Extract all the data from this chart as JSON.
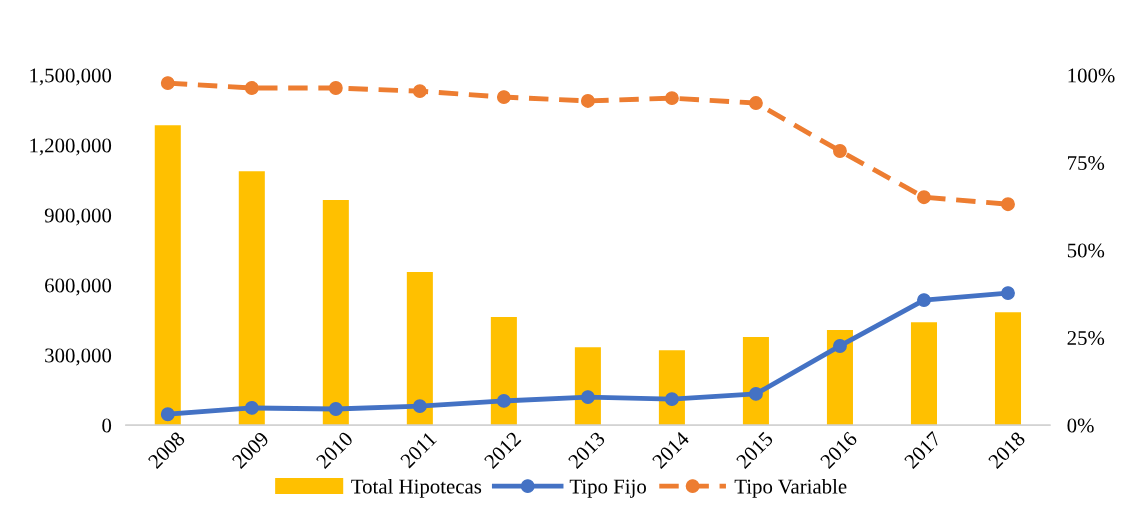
{
  "chart_data": {
    "type": "bar",
    "categories": [
      "2008",
      "2009",
      "2010",
      "2011",
      "2012",
      "2013",
      "2014",
      "2015",
      "2016",
      "2017",
      "2018"
    ],
    "series": [
      {
        "name": "Total Hipotecas",
        "color": "#ffc000",
        "values": [
          1285000,
          1088000,
          964000,
          656000,
          463000,
          334000,
          321000,
          377000,
          407000,
          441000,
          484000
        ]
      },
      {
        "name": "Tipo Fijo",
        "type": "line",
        "axis": "y2",
        "color": "#4472c4",
        "marker": "circle",
        "line_style": "solid",
        "values": [
          3.1,
          4.9,
          4.6,
          5.4,
          6.9,
          8.0,
          7.4,
          8.9,
          22.6,
          35.7,
          37.7
        ]
      },
      {
        "name": "Tipo Variable",
        "type": "line",
        "axis": "y2",
        "color": "#ed7d31",
        "marker": "circle",
        "line_style": "dashed",
        "values": [
          97.7,
          96.3,
          96.3,
          95.4,
          93.7,
          92.6,
          93.4,
          92.0,
          78.3,
          65.1,
          63.1
        ]
      }
    ],
    "ylim": [
      0,
      1500000
    ],
    "yticks": [
      {
        "value": 0,
        "label": "0"
      },
      {
        "value": 300000,
        "label": "300,000"
      },
      {
        "value": 600000,
        "label": "600,000"
      },
      {
        "value": 900000,
        "label": "900,000"
      },
      {
        "value": 1200000,
        "label": "1,200,000"
      },
      {
        "value": 1500000,
        "label": "1,500,000"
      }
    ],
    "y2lim": [
      0,
      100
    ],
    "y2ticks": [
      {
        "value": 0,
        "label": "0%"
      },
      {
        "value": 25,
        "label": "25%"
      },
      {
        "value": 50,
        "label": "50%"
      },
      {
        "value": 75,
        "label": "75%"
      },
      {
        "value": 100,
        "label": "100%"
      }
    ],
    "grid": false,
    "legend": "bottom"
  }
}
